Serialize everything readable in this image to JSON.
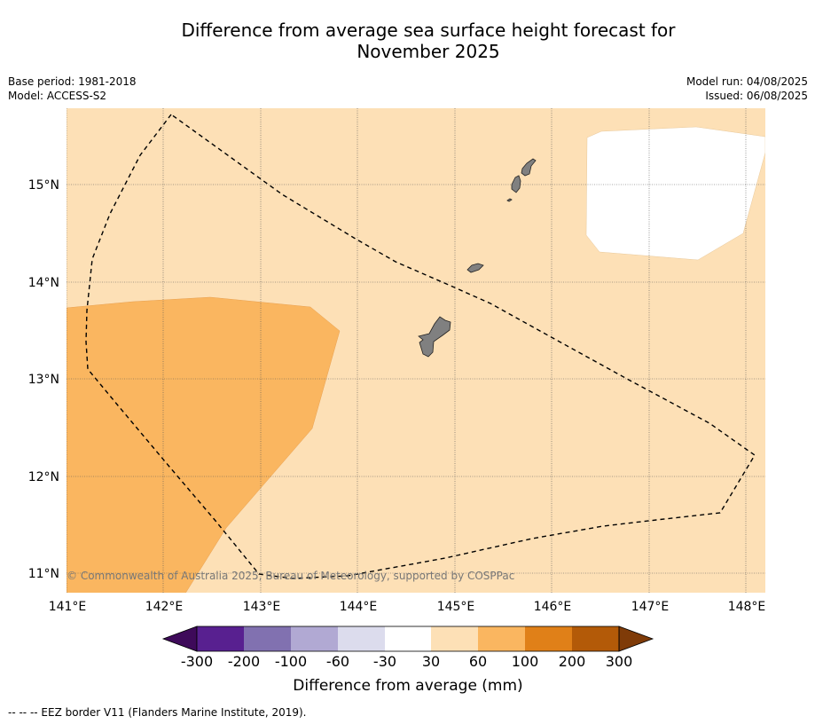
{
  "title": {
    "line1": "Difference from average sea surface height forecast for",
    "line2": "November 2025"
  },
  "meta_left": {
    "base_period": "Base period: 1981-2018",
    "model": "Model: ACCESS-S2"
  },
  "meta_right": {
    "model_run": "Model run: 04/08/2025",
    "issued": "Issued: 06/08/2025"
  },
  "map": {
    "lon_labels": [
      "141°E",
      "142°E",
      "143°E",
      "144°E",
      "145°E",
      "146°E",
      "147°E",
      "148°E"
    ],
    "lat_labels": [
      "15°N",
      "14°N",
      "13°N",
      "12°N",
      "11°N"
    ],
    "copyright": "© Commonwealth of Australia 2025, Bureau of Meteorology, supported by COSPPac",
    "colors": {
      "band_30_60": "#fde0b6",
      "band_60_100": "#fab660",
      "no_change": "#ffffff",
      "land": "#808080"
    }
  },
  "colorbar": {
    "ticks": [
      "-300",
      "-200",
      "-100",
      "-60",
      "-30",
      "30",
      "60",
      "100",
      "200",
      "300"
    ],
    "colors": [
      "#3e0a5a",
      "#582090",
      "#8171b0",
      "#b1a9d3",
      "#dcdced",
      "#ffffff",
      "#fde0b6",
      "#fab660",
      "#e08018",
      "#b35a08",
      "#7f3b08"
    ],
    "label": "Difference from average (mm)"
  },
  "footer": {
    "legend": "--  --  -- EEZ border V11 (Flanders Marine Institute, 2019)."
  }
}
